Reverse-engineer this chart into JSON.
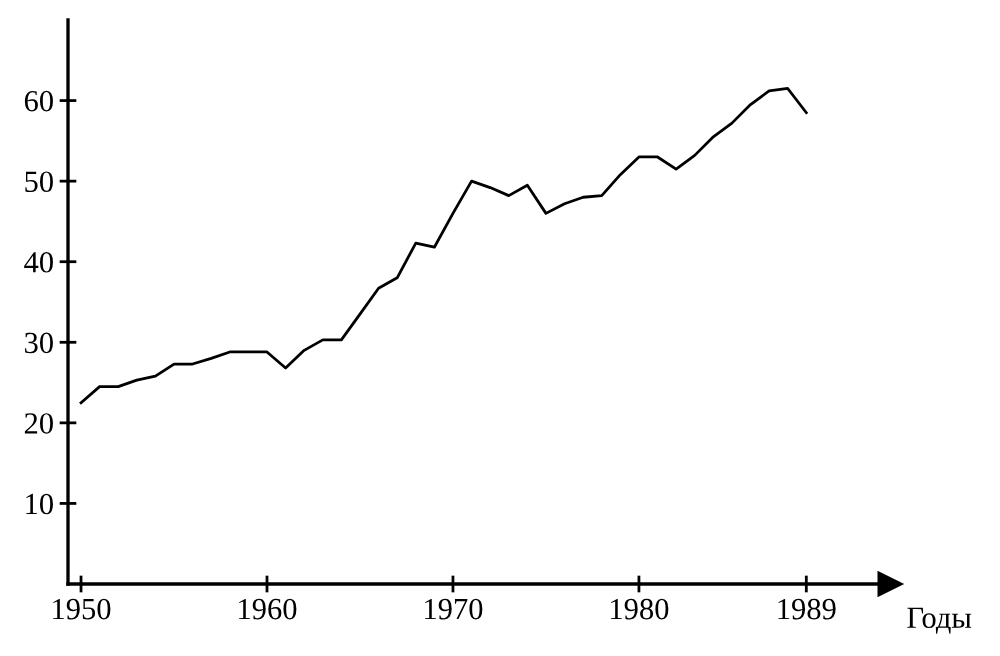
{
  "chart_data": {
    "type": "line",
    "xlabel": "Годы",
    "x": [
      1950,
      1951,
      1952,
      1953,
      1954,
      1955,
      1956,
      1957,
      1958,
      1959,
      1960,
      1961,
      1962,
      1963,
      1964,
      1965,
      1966,
      1967,
      1968,
      1969,
      1970,
      1971,
      1972,
      1973,
      1974,
      1975,
      1976,
      1977,
      1978,
      1979,
      1980,
      1981,
      1982,
      1983,
      1984,
      1985,
      1986,
      1987,
      1988,
      1989
    ],
    "series": [
      {
        "color": "#000000",
        "values": [
          22.5,
          24.5,
          24.5,
          25.3,
          25.8,
          27.3,
          27.3,
          28,
          28.8,
          28.8,
          28.8,
          26.8,
          29,
          30.3,
          30.3,
          33.5,
          36.7,
          38,
          42.3,
          41.8,
          46,
          50,
          49.2,
          48.2,
          49.5,
          46,
          47.2,
          48,
          48.2,
          50.8,
          53,
          53,
          51.5,
          53.2,
          55.5,
          57.2,
          59.5,
          61.2,
          61.5,
          58.5
        ]
      }
    ],
    "xlim": [
      1949.3,
      1993.5
    ],
    "ylim": [
      0,
      70
    ],
    "xticks": [
      1950,
      1960,
      1970,
      1980,
      1989
    ],
    "yticks": [
      10,
      20,
      30,
      40,
      50,
      60
    ],
    "grid": false,
    "legend": false,
    "marker": "none",
    "line_style": "solid"
  }
}
